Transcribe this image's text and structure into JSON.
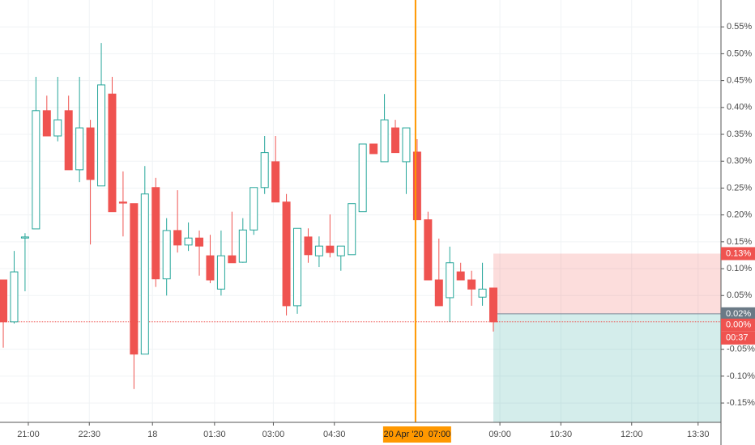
{
  "chart_data": {
    "type": "candlestick",
    "x": [
      0,
      1,
      2,
      3,
      4,
      5,
      6,
      7,
      8,
      9,
      10,
      11,
      12,
      13,
      14,
      15,
      16,
      17,
      18,
      19,
      20,
      21,
      22,
      23,
      24,
      25,
      26,
      27,
      28,
      29,
      30,
      31,
      32,
      33,
      34,
      35,
      36,
      37,
      38,
      39,
      40,
      41,
      42,
      43,
      44,
      45
    ],
    "open": [
      0.079,
      0.001,
      0.157,
      0.174,
      0.394,
      0.347,
      0.394,
      0.284,
      0.362,
      0.254,
      0.425,
      0.224,
      0.221,
      -0.059,
      0.251,
      0.081,
      0.171,
      0.144,
      0.157,
      0.124,
      0.062,
      0.124,
      0.112,
      0.172,
      0.251,
      0.299,
      0.224,
      0.031,
      0.159,
      0.124,
      0.142,
      0.124,
      0.126,
      0.206,
      0.332,
      0.299,
      0.362,
      0.299,
      0.317,
      0.191,
      0.079,
      0.046,
      0.094,
      0.079,
      0.047,
      0.064
    ],
    "high": [
      0.079,
      0.133,
      0.166,
      0.457,
      0.422,
      0.457,
      0.422,
      0.457,
      0.377,
      0.52,
      0.457,
      0.281,
      0.221,
      0.291,
      0.269,
      0.194,
      0.246,
      0.186,
      0.171,
      0.163,
      0.171,
      0.206,
      0.194,
      0.251,
      0.347,
      0.347,
      0.239,
      0.175,
      0.175,
      0.16,
      0.201,
      0.142,
      0.221,
      0.332,
      0.332,
      0.425,
      0.377,
      0.362,
      0.341,
      0.206,
      0.156,
      0.141,
      0.111,
      0.096,
      0.111,
      0.064
    ],
    "low": [
      -0.047,
      -0.002,
      0.058,
      0.174,
      0.347,
      0.337,
      0.284,
      0.261,
      0.145,
      0.254,
      0.206,
      0.16,
      -0.124,
      -0.059,
      0.066,
      0.05,
      0.13,
      0.133,
      0.087,
      0.073,
      0.05,
      0.111,
      0.111,
      0.163,
      0.239,
      0.224,
      0.013,
      0.016,
      0.111,
      0.103,
      0.121,
      0.096,
      0.126,
      0.206,
      0.314,
      0.299,
      0.316,
      0.239,
      0.191,
      0.079,
      0.031,
      0.001,
      0.079,
      0.031,
      0.031,
      -0.017
    ],
    "close": [
      0.001,
      0.094,
      0.159,
      0.394,
      0.347,
      0.377,
      0.284,
      0.362,
      0.266,
      0.442,
      0.206,
      0.222,
      -0.059,
      0.239,
      0.081,
      0.171,
      0.144,
      0.157,
      0.142,
      0.079,
      0.124,
      0.111,
      0.172,
      0.251,
      0.316,
      0.224,
      0.031,
      0.175,
      0.126,
      0.142,
      0.13,
      0.142,
      0.221,
      0.332,
      0.314,
      0.377,
      0.316,
      0.362,
      0.191,
      0.079,
      0.031,
      0.111,
      0.079,
      0.062,
      0.062,
      0.001
    ],
    "up_color": "#26a69a",
    "down_color": "#ef5350",
    "xlim": [
      -0.3,
      65.9
    ],
    "xticks": [
      {
        "value": 2.3,
        "label": "21:00"
      },
      {
        "value": 7.9,
        "label": "22:30"
      },
      {
        "value": 13.7,
        "label": "18"
      },
      {
        "value": 19.4,
        "label": "01:30"
      },
      {
        "value": 24.8,
        "label": "03:00"
      },
      {
        "value": 30.4,
        "label": "04:30"
      },
      {
        "value": 45.6,
        "label": "09:00"
      },
      {
        "value": 51.2,
        "label": "10:30"
      },
      {
        "value": 57.7,
        "label": "12:00"
      },
      {
        "value": 63.8,
        "label": "13:30"
      }
    ],
    "ylim": [
      -0.186,
      0.6
    ],
    "yticks": [
      {
        "value": 0.55,
        "label": "0.55%"
      },
      {
        "value": 0.5,
        "label": "0.50%"
      },
      {
        "value": 0.45,
        "label": "0.45%"
      },
      {
        "value": 0.4,
        "label": "0.40%"
      },
      {
        "value": 0.35,
        "label": "0.35%"
      },
      {
        "value": 0.3,
        "label": "0.30%"
      },
      {
        "value": 0.25,
        "label": "0.25%"
      },
      {
        "value": 0.2,
        "label": "0.20%"
      },
      {
        "value": 0.15,
        "label": "0.15%"
      },
      {
        "value": 0.1,
        "label": "0.10%"
      },
      {
        "value": 0.05,
        "label": "0.05%"
      },
      {
        "value": -0.05,
        "label": "-0.05%"
      },
      {
        "value": -0.1,
        "label": "-0.10%"
      },
      {
        "value": -0.15,
        "label": "-0.15%"
      }
    ],
    "grid": true,
    "crosshair": {
      "x": 37.85,
      "label": "20 Apr '20  07:00"
    },
    "position": {
      "start": 45,
      "stop": {
        "value": 0.128,
        "label": "0.13%"
      },
      "entry": {
        "value": 0.016,
        "label": "0.02%"
      },
      "target": -0.186
    },
    "last_price": {
      "value": 0.001,
      "label": "0.00%"
    },
    "countdown": "00:37"
  }
}
